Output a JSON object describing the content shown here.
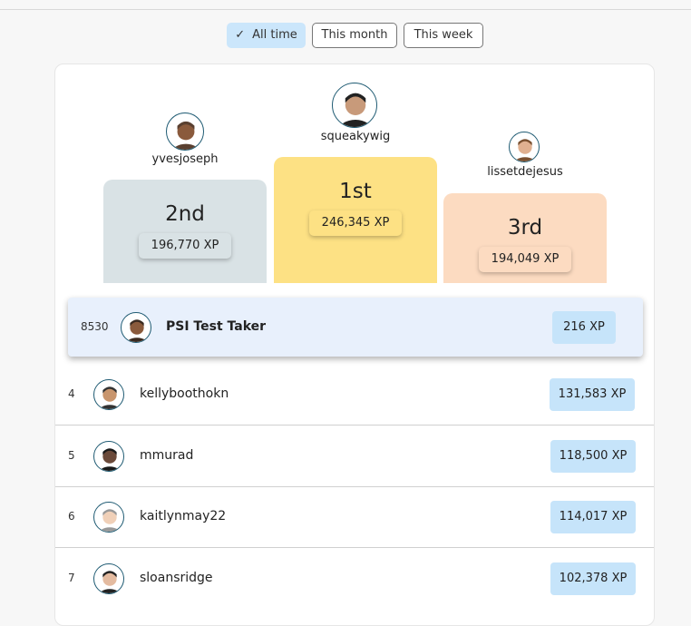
{
  "tabs": [
    {
      "label": "All time",
      "active": true
    },
    {
      "label": "This month",
      "active": false
    },
    {
      "label": "This week",
      "active": false
    }
  ],
  "podium": [
    {
      "place": "2nd",
      "name": "yvesjoseph",
      "xp": "196,770 XP"
    },
    {
      "place": "1st",
      "name": "squeakywig",
      "xp": "246,345 XP"
    },
    {
      "place": "3rd",
      "name": "lissetdejesus",
      "xp": "194,049 XP"
    }
  ],
  "current_user": {
    "rank": "8530",
    "name": "PSI Test Taker",
    "xp": "216 XP"
  },
  "rows": [
    {
      "rank": "4",
      "name": "kellyboothokn",
      "xp": "131,583 XP"
    },
    {
      "rank": "5",
      "name": "mmurad",
      "xp": "118,500 XP"
    },
    {
      "rank": "6",
      "name": "kaitlynmay22",
      "xp": "114,017 XP"
    },
    {
      "rank": "7",
      "name": "sloansridge",
      "xp": "102,378 XP"
    }
  ]
}
